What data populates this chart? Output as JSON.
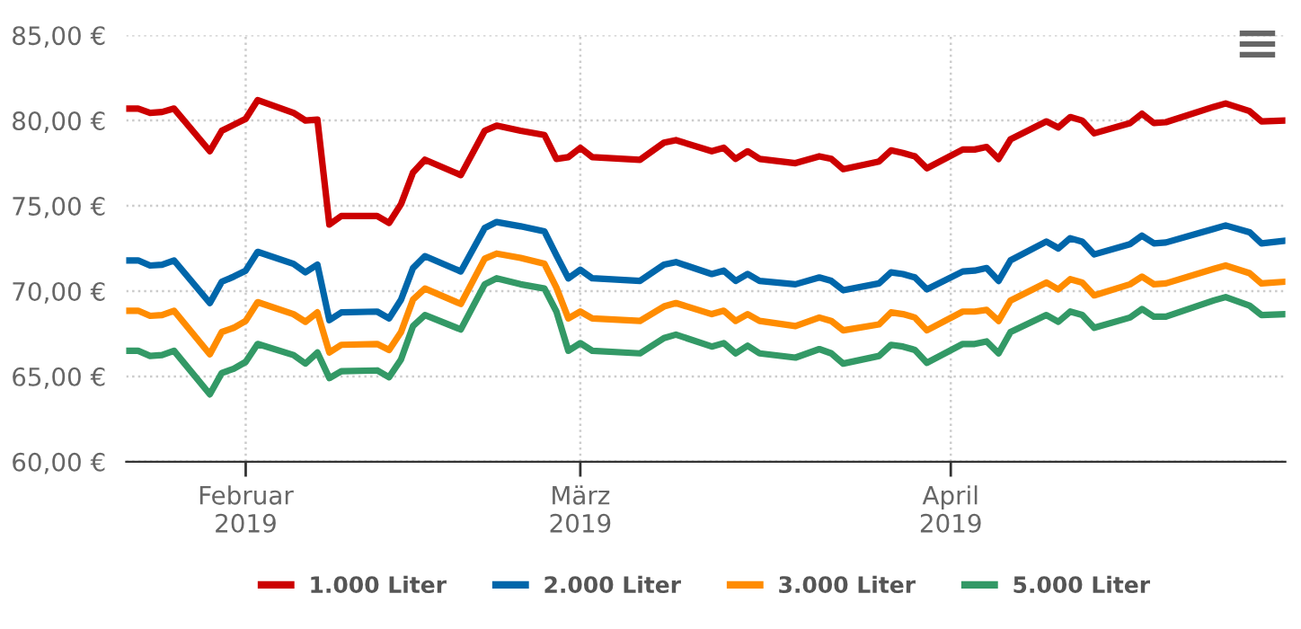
{
  "chart_data": {
    "type": "line",
    "x": [
      "2019-01-22",
      "2019-01-23",
      "2019-01-24",
      "2019-01-25",
      "2019-01-26",
      "2019-01-29",
      "2019-01-30",
      "2019-01-31",
      "2019-02-01",
      "2019-02-02",
      "2019-02-05",
      "2019-02-06",
      "2019-02-07",
      "2019-02-08",
      "2019-02-09",
      "2019-02-12",
      "2019-02-13",
      "2019-02-14",
      "2019-02-15",
      "2019-02-16",
      "2019-02-19",
      "2019-02-21",
      "2019-02-22",
      "2019-02-24",
      "2019-02-26",
      "2019-02-27",
      "2019-02-28",
      "2019-03-01",
      "2019-03-02",
      "2019-03-06",
      "2019-03-08",
      "2019-03-09",
      "2019-03-12",
      "2019-03-13",
      "2019-03-14",
      "2019-03-15",
      "2019-03-16",
      "2019-03-19",
      "2019-03-21",
      "2019-03-22",
      "2019-03-23",
      "2019-03-26",
      "2019-03-27",
      "2019-03-28",
      "2019-03-29",
      "2019-03-30",
      "2019-04-02",
      "2019-04-03",
      "2019-04-04",
      "2019-04-05",
      "2019-04-06",
      "2019-04-09",
      "2019-04-10",
      "2019-04-11",
      "2019-04-12",
      "2019-04-13",
      "2019-04-16",
      "2019-04-17",
      "2019-04-18",
      "2019-04-19",
      "2019-04-23",
      "2019-04-24",
      "2019-04-26",
      "2019-04-27",
      "2019-04-29"
    ],
    "series": [
      {
        "name": "1.000 Liter",
        "color": "#cc0000",
        "values": [
          80.7,
          80.7,
          80.45,
          80.5,
          80.7,
          78.2,
          79.4,
          79.75,
          80.1,
          81.2,
          80.45,
          80.0,
          80.05,
          73.9,
          74.4,
          74.4,
          74.0,
          75.1,
          76.95,
          77.7,
          76.8,
          79.4,
          79.7,
          79.4,
          79.15,
          77.75,
          77.85,
          78.4,
          77.85,
          77.7,
          78.7,
          78.85,
          78.2,
          78.4,
          77.75,
          78.2,
          77.75,
          77.5,
          77.9,
          77.75,
          77.15,
          77.6,
          78.25,
          78.1,
          77.9,
          77.2,
          78.3,
          78.3,
          78.45,
          77.75,
          78.9,
          79.95,
          79.6,
          80.2,
          80.0,
          79.25,
          79.85,
          80.4,
          79.85,
          79.9,
          80.8,
          81.0,
          80.55,
          79.95,
          80.0
        ]
      },
      {
        "name": "2.000 Liter",
        "color": "#0066aa",
        "values": [
          71.8,
          71.8,
          71.5,
          71.55,
          71.8,
          69.3,
          70.55,
          70.85,
          71.2,
          72.3,
          71.6,
          71.1,
          71.55,
          68.3,
          68.75,
          68.8,
          68.4,
          69.5,
          71.35,
          72.05,
          71.15,
          73.7,
          74.05,
          73.8,
          73.5,
          72.1,
          70.75,
          71.25,
          70.75,
          70.6,
          71.55,
          71.7,
          71.0,
          71.2,
          70.6,
          71.0,
          70.6,
          70.4,
          70.8,
          70.6,
          70.05,
          70.45,
          71.1,
          71.0,
          70.8,
          70.1,
          71.15,
          71.2,
          71.35,
          70.6,
          71.8,
          72.9,
          72.5,
          73.1,
          72.9,
          72.15,
          72.75,
          73.25,
          72.8,
          72.85,
          73.65,
          73.85,
          73.45,
          72.8,
          72.95
        ]
      },
      {
        "name": "3.000 Liter",
        "color": "#ff8c00",
        "values": [
          68.85,
          68.85,
          68.55,
          68.6,
          68.85,
          66.3,
          67.6,
          67.85,
          68.25,
          69.35,
          68.65,
          68.2,
          68.75,
          66.4,
          66.85,
          66.9,
          66.55,
          67.6,
          69.5,
          70.15,
          69.25,
          71.9,
          72.2,
          71.95,
          71.6,
          70.2,
          68.4,
          68.8,
          68.4,
          68.25,
          69.1,
          69.3,
          68.65,
          68.85,
          68.25,
          68.65,
          68.25,
          67.95,
          68.45,
          68.25,
          67.7,
          68.05,
          68.75,
          68.65,
          68.45,
          67.7,
          68.8,
          68.8,
          68.9,
          68.25,
          69.45,
          70.5,
          70.1,
          70.7,
          70.5,
          69.75,
          70.4,
          70.85,
          70.4,
          70.45,
          71.3,
          71.5,
          71.05,
          70.45,
          70.55
        ]
      },
      {
        "name": "5.000 Liter",
        "color": "#339966",
        "values": [
          66.5,
          66.5,
          66.2,
          66.25,
          66.5,
          63.95,
          65.2,
          65.45,
          65.85,
          66.9,
          66.25,
          65.75,
          66.4,
          64.9,
          65.3,
          65.35,
          64.95,
          66.0,
          67.95,
          68.6,
          67.75,
          70.4,
          70.75,
          70.4,
          70.15,
          68.8,
          66.5,
          66.95,
          66.5,
          66.35,
          67.25,
          67.45,
          66.75,
          66.95,
          66.35,
          66.8,
          66.35,
          66.1,
          66.6,
          66.35,
          65.75,
          66.2,
          66.85,
          66.75,
          66.55,
          65.8,
          66.9,
          66.9,
          67.05,
          66.35,
          67.6,
          68.6,
          68.2,
          68.8,
          68.6,
          67.85,
          68.45,
          68.95,
          68.5,
          68.5,
          69.45,
          69.65,
          69.15,
          68.6,
          68.65
        ]
      }
    ],
    "xlim": [
      "2019-01-22",
      "2019-04-29"
    ],
    "xticks": [
      {
        "value": "2019-02-01",
        "label": "Februar\n2019"
      },
      {
        "value": "2019-03-01",
        "label": "März\n2019"
      },
      {
        "value": "2019-04-01",
        "label": "April\n2019"
      }
    ],
    "ylim": [
      60,
      85
    ],
    "yticks": [
      {
        "value": 60,
        "label": "60,00 €"
      },
      {
        "value": 65,
        "label": "65,00 €"
      },
      {
        "value": 70,
        "label": "70,00 €"
      },
      {
        "value": 75,
        "label": "75,00 €"
      },
      {
        "value": 80,
        "label": "80,00 €"
      },
      {
        "value": 85,
        "label": "85,00 €"
      }
    ],
    "grid": true,
    "legend": "bottom",
    "marker": "none",
    "line_style": "solid"
  }
}
